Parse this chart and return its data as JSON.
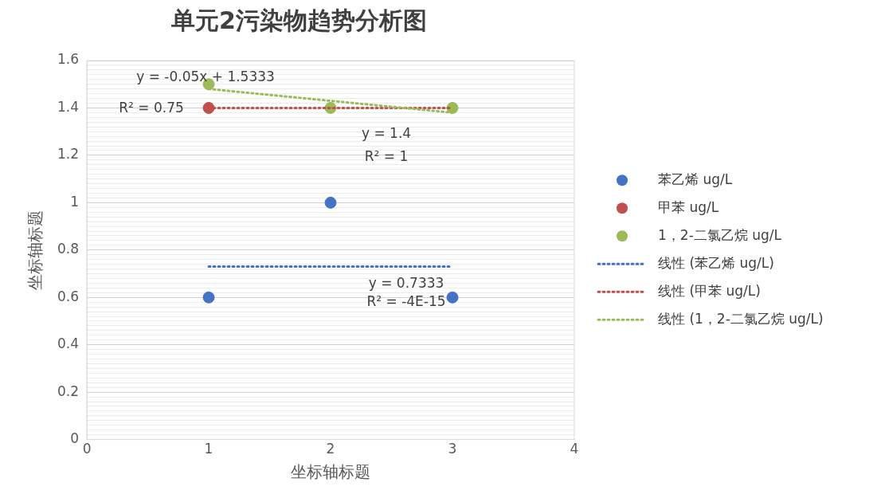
{
  "chart_data": {
    "type": "scatter",
    "title": "单元2污染物趋势分析图",
    "xlabel": "坐标轴标题",
    "ylabel": "坐标轴标题",
    "xlim": [
      0,
      4
    ],
    "xticks": [
      0,
      1,
      2,
      3,
      4
    ],
    "ylim": [
      0,
      1.6
    ],
    "yticks": [
      0,
      {
        "value": 0.02,
        "label": null
      },
      {
        "value": 0.04,
        "label": null
      },
      {
        "value": 0.06,
        "label": null
      },
      {
        "value": 0.08,
        "label": null
      },
      {
        "value": 0.1,
        "label": null
      },
      {
        "value": 0.12,
        "label": null
      },
      {
        "value": 0.14,
        "label": null
      },
      {
        "value": 0.16,
        "label": null
      },
      {
        "value": 0.18,
        "label": null
      },
      0.2,
      {
        "value": 0.22,
        "label": null
      },
      {
        "value": 0.24,
        "label": null
      },
      {
        "value": 0.26,
        "label": null
      },
      {
        "value": 0.28,
        "label": null
      },
      {
        "value": 0.3,
        "label": null
      },
      {
        "value": 0.32,
        "label": null
      },
      {
        "value": 0.34,
        "label": null
      },
      {
        "value": 0.36,
        "label": null
      },
      {
        "value": 0.38,
        "label": null
      },
      0.4,
      {
        "value": 0.42,
        "label": null
      },
      {
        "value": 0.44,
        "label": null
      },
      {
        "value": 0.46,
        "label": null
      },
      {
        "value": 0.48,
        "label": null
      },
      {
        "value": 0.5,
        "label": null
      },
      {
        "value": 0.52,
        "label": null
      },
      {
        "value": 0.54,
        "label": null
      },
      {
        "value": 0.56,
        "label": null
      },
      {
        "value": 0.58,
        "label": null
      },
      0.6,
      {
        "value": 0.62,
        "label": null
      },
      {
        "value": 0.64,
        "label": null
      },
      {
        "value": 0.66,
        "label": null
      },
      {
        "value": 0.68,
        "label": null
      },
      {
        "value": 0.7,
        "label": null
      },
      {
        "value": 0.72,
        "label": null
      },
      {
        "value": 0.74,
        "label": null
      },
      {
        "value": 0.76,
        "label": null
      },
      {
        "value": 0.78,
        "label": null
      },
      0.8,
      {
        "value": 0.82,
        "label": null
      },
      {
        "value": 0.84,
        "label": null
      },
      {
        "value": 0.86,
        "label": null
      },
      {
        "value": 0.88,
        "label": null
      },
      {
        "value": 0.9,
        "label": null
      },
      {
        "value": 0.92,
        "label": null
      },
      {
        "value": 0.94,
        "label": null
      },
      {
        "value": 0.96,
        "label": null
      },
      {
        "value": 0.98,
        "label": null
      },
      1,
      {
        "value": 1.02,
        "label": null
      },
      {
        "value": 1.04,
        "label": null
      },
      {
        "value": 1.06,
        "label": null
      },
      {
        "value": 1.08,
        "label": null
      },
      {
        "value": 1.1,
        "label": null
      },
      {
        "value": 1.12,
        "label": null
      },
      {
        "value": 1.14,
        "label": null
      },
      {
        "value": 1.16,
        "label": null
      },
      {
        "value": 1.18,
        "label": null
      },
      1.2,
      {
        "value": 1.22,
        "label": null
      },
      {
        "value": 1.24,
        "label": null
      },
      {
        "value": 1.26,
        "label": null
      },
      {
        "value": 1.28,
        "label": null
      },
      {
        "value": 1.3,
        "label": null
      },
      {
        "value": 1.32,
        "label": null
      },
      {
        "value": 1.34,
        "label": null
      },
      {
        "value": 1.36,
        "label": null
      },
      {
        "value": 1.38,
        "label": null
      },
      1.4,
      {
        "value": 1.42,
        "label": null
      },
      {
        "value": 1.44,
        "label": null
      },
      {
        "value": 1.46,
        "label": null
      },
      {
        "value": 1.48,
        "label": null
      },
      {
        "value": 1.5,
        "label": null
      },
      {
        "value": 1.52,
        "label": null
      },
      {
        "value": 1.54,
        "label": null
      },
      {
        "value": 1.56,
        "label": null
      },
      {
        "value": 1.58,
        "label": null
      },
      1.6
    ],
    "grid": "y",
    "legend": "right",
    "marker": "circle",
    "series": [
      {
        "name": "苯乙烯 ug/L",
        "type": "scatter",
        "color": "#4472c4",
        "x": [
          1,
          2,
          3
        ],
        "values": [
          0.6,
          1,
          0.6
        ]
      },
      {
        "name": "甲苯 ug/L",
        "type": "scatter",
        "color": "#c0504d",
        "x": [
          1
        ],
        "values": [
          1.4
        ]
      },
      {
        "name": "1，2-二氯乙烷 ug/L",
        "type": "scatter",
        "color": "#9bbb59",
        "x": [
          1,
          2,
          3
        ],
        "values": [
          1.5,
          1.4,
          1.4
        ]
      },
      {
        "name": "线性 (苯乙烯 ug/L)",
        "type": "line",
        "color": "#4472c4",
        "line_style": "dotted",
        "marker": "none",
        "x": [
          1,
          3
        ],
        "values": [
          0.73,
          0.73
        ]
      },
      {
        "name": "线性 (甲苯 ug/L)",
        "type": "line",
        "color": "#c0504d",
        "line_style": "dotted",
        "marker": "none",
        "x": [
          1,
          3
        ],
        "values": [
          1.4,
          1.4
        ]
      },
      {
        "name": "线性 (1，2-二氯乙烷 ug/L)",
        "type": "line",
        "color": "#9bbb59",
        "line_style": "dotted",
        "marker": "none",
        "x": [
          1,
          3
        ],
        "values": [
          1.48,
          1.38
        ]
      }
    ],
    "annotations": [
      "y = 0.7333",
      "R² = -4E-15",
      "y = 1.4",
      "R² = 1",
      "y = -0.05x + 1.5333",
      "R² = 0.75"
    ]
  }
}
